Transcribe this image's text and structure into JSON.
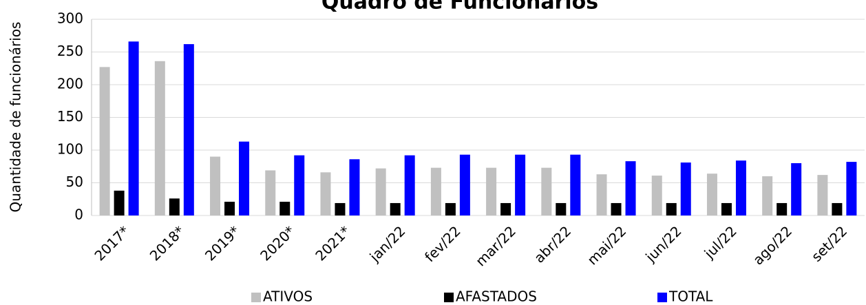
{
  "chart_data": {
    "type": "bar",
    "title": "Quadro de Funcionários",
    "ylabel": "Quantidade de funcionários",
    "categories": [
      "2017*",
      "2018*",
      "2019*",
      "2020*",
      "2021*",
      "jan/22",
      "fev/22",
      "mar/22",
      "abr/22",
      "mai/22",
      "jun/22",
      "jul/22",
      "ago/22",
      "set/22"
    ],
    "series": [
      {
        "name": "ATIVOS",
        "color": "#c0c0c0",
        "values": [
          227,
          236,
          90,
          69,
          66,
          72,
          73,
          73,
          73,
          63,
          61,
          64,
          60,
          62
        ]
      },
      {
        "name": "AFASTADOS",
        "color": "#000000",
        "values": [
          38,
          26,
          21,
          21,
          19,
          19,
          19,
          19,
          19,
          19,
          19,
          19,
          19,
          19
        ]
      },
      {
        "name": "TOTAL",
        "color": "#0000ff",
        "values": [
          266,
          262,
          113,
          92,
          86,
          92,
          93,
          93,
          93,
          83,
          81,
          84,
          80,
          82
        ]
      }
    ],
    "ylim": [
      0,
      300
    ],
    "yticks": [
      0,
      50,
      100,
      150,
      200,
      250,
      300
    ],
    "grid": true,
    "legend": "bottom"
  }
}
